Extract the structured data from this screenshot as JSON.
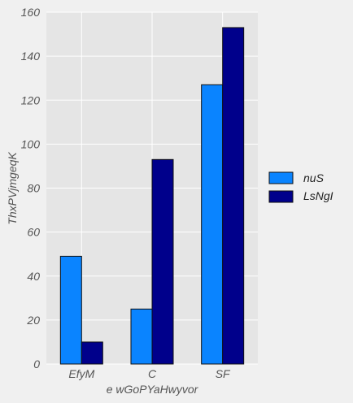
{
  "chart_data": {
    "type": "bar",
    "title": "",
    "xlabel": "e wGoPYaHwyvor",
    "ylabel": "ThxPVjmgeqK",
    "categories": [
      "EfyM",
      "C",
      "SF"
    ],
    "series": [
      {
        "name": "nuS",
        "values": [
          49,
          25,
          127
        ],
        "color": "#0a84ff"
      },
      {
        "name": "LsNgI",
        "values": [
          10,
          93,
          153
        ],
        "color": "#00008b"
      }
    ],
    "ylim": [
      0,
      160
    ],
    "yticks": [
      0,
      20,
      40,
      60,
      80,
      100,
      120,
      140,
      160
    ],
    "grid": true,
    "legend_position": "right"
  }
}
